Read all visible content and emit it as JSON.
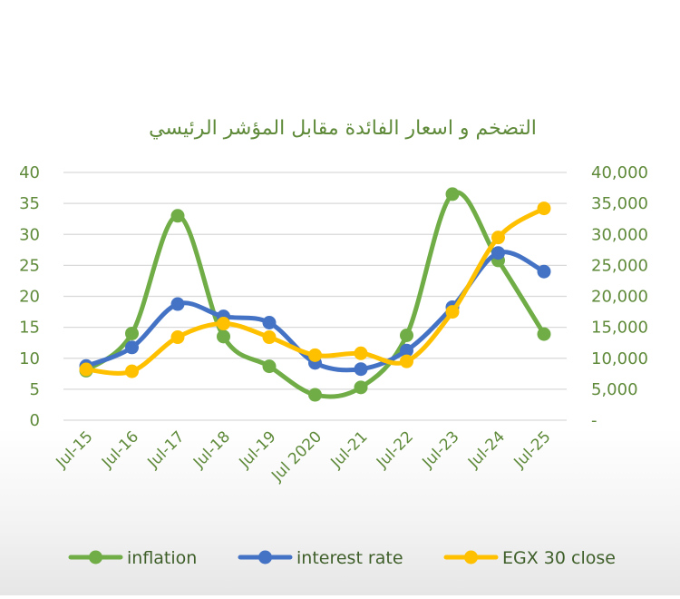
{
  "chart_data": {
    "type": "line",
    "title": "التضخم و اسعار الفائدة مقابل المؤشر الرئيسي",
    "categories": [
      "Jul-15",
      "Jul-16",
      "Jul-17",
      "Jul-18",
      "Jul-19",
      "Jul 2020",
      "Jul-21",
      "Jul-22",
      "Jul-23",
      "Jul-24",
      "Jul-25"
    ],
    "y_left": {
      "min": 0,
      "max": 40,
      "ticks": [
        "0",
        "5",
        "10",
        "15",
        "20",
        "25",
        "30",
        "35",
        "40"
      ]
    },
    "y_right": {
      "min": 0,
      "max": 40000,
      "ticks": [
        "-",
        "5,000",
        "10,000",
        "15,000",
        "20,000",
        "25,000",
        "30,000",
        "35,000",
        "40,000"
      ]
    },
    "grid": true,
    "smooth": true,
    "legend_position": "bottom",
    "series": [
      {
        "name": "inflation",
        "axis": "left",
        "color": "#70ad47",
        "values": [
          8,
          14,
          33,
          13.5,
          8.7,
          4.1,
          5.3,
          13.7,
          36.5,
          25.8,
          13.9
        ]
      },
      {
        "name": "interest rate",
        "axis": "left",
        "color": "#4472c4",
        "values": [
          8.75,
          11.75,
          18.75,
          16.75,
          15.75,
          9.25,
          8.25,
          11.25,
          18.25,
          27,
          24
        ]
      },
      {
        "name": "EGX 30 close",
        "axis": "right",
        "color": "#ffc000",
        "values": [
          8200,
          7900,
          13400,
          15600,
          13400,
          10500,
          10800,
          9500,
          17500,
          29500,
          34200
        ]
      }
    ]
  }
}
